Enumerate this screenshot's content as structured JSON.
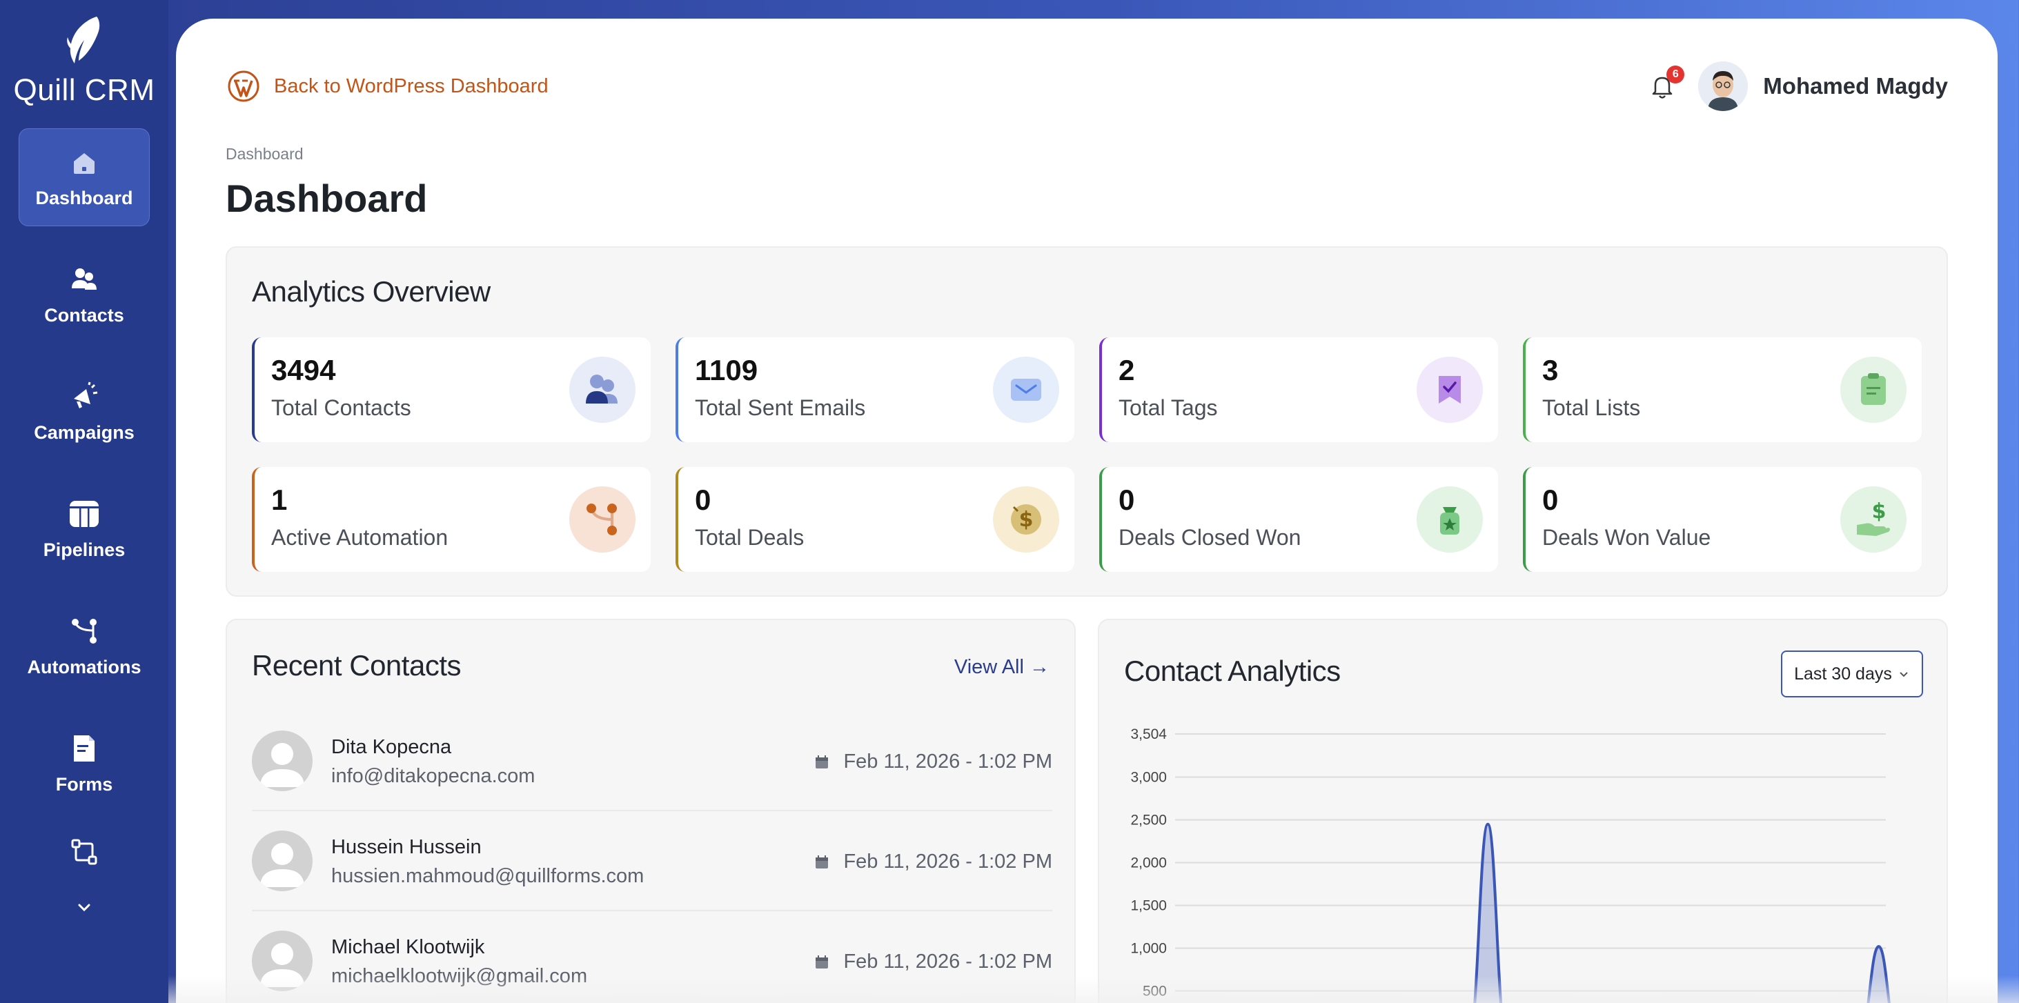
{
  "sidebar": {
    "brand": "Quill CRM",
    "items": [
      {
        "label": "Dashboard",
        "icon": "home-icon"
      },
      {
        "label": "Contacts",
        "icon": "users-icon"
      },
      {
        "label": "Campaigns",
        "icon": "megaphone-icon"
      },
      {
        "label": "Pipelines",
        "icon": "pipeline-icon"
      },
      {
        "label": "Automations",
        "icon": "automation-icon"
      },
      {
        "label": "Forms",
        "icon": "forms-icon"
      }
    ]
  },
  "header": {
    "back_link": "Back to WordPress Dashboard",
    "notification_count": "6",
    "user_name": "Mohamed Magdy"
  },
  "breadcrumb": "Dashboard",
  "page_title": "Dashboard",
  "overview": {
    "title": "Analytics Overview",
    "stats": [
      {
        "value": "3494",
        "label": "Total Contacts",
        "icon": "contacts-icon",
        "accent": "#2a3c8f"
      },
      {
        "value": "1109",
        "label": "Total Sent Emails",
        "icon": "envelope-icon",
        "accent": "#4f7de6"
      },
      {
        "value": "2",
        "label": "Total Tags",
        "icon": "tag-icon",
        "accent": "#7a2fd0"
      },
      {
        "value": "3",
        "label": "Total Lists",
        "icon": "clipboard-icon",
        "accent": "#4caf50"
      },
      {
        "value": "1",
        "label": "Active Automation",
        "icon": "automation-icon",
        "accent": "#c8641e"
      },
      {
        "value": "0",
        "label": "Total Deals",
        "icon": "dollar-coin-icon",
        "accent": "#b08a1e"
      },
      {
        "value": "0",
        "label": "Deals Closed Won",
        "icon": "money-bag-icon",
        "accent": "#3d9c4a"
      },
      {
        "value": "0",
        "label": "Deals Won Value",
        "icon": "dollar-hand-icon",
        "accent": "#3d9c4a"
      }
    ]
  },
  "recent_contacts": {
    "title": "Recent Contacts",
    "view_all": "View All",
    "rows": [
      {
        "name": "Dita Kopecna",
        "email": "info@ditakopecna.com",
        "date": "Feb 11, 2026 - 1:02 PM"
      },
      {
        "name": "Hussein Hussein",
        "email": "hussien.mahmoud@quillforms.com",
        "date": "Feb 11, 2026 - 1:02 PM"
      },
      {
        "name": "Michael Klootwijk",
        "email": "michaelklootwijk@gmail.com",
        "date": "Feb 11, 2026 - 1:02 PM"
      }
    ]
  },
  "contact_analytics": {
    "title": "Contact Analytics",
    "range": "Last 30 days"
  },
  "chart_data": {
    "type": "area",
    "title": "Contact Analytics",
    "yticks": [
      "3,504",
      "3,000",
      "2,500",
      "2,000",
      "1,500",
      "1,000",
      "500"
    ],
    "ylim": [
      0,
      3504
    ],
    "grid": true,
    "series": [
      {
        "color": "#3a57b8",
        "peaks": [
          {
            "x": 0.44,
            "y": 2450
          },
          {
            "x": 0.99,
            "y": 1020
          }
        ]
      }
    ]
  }
}
